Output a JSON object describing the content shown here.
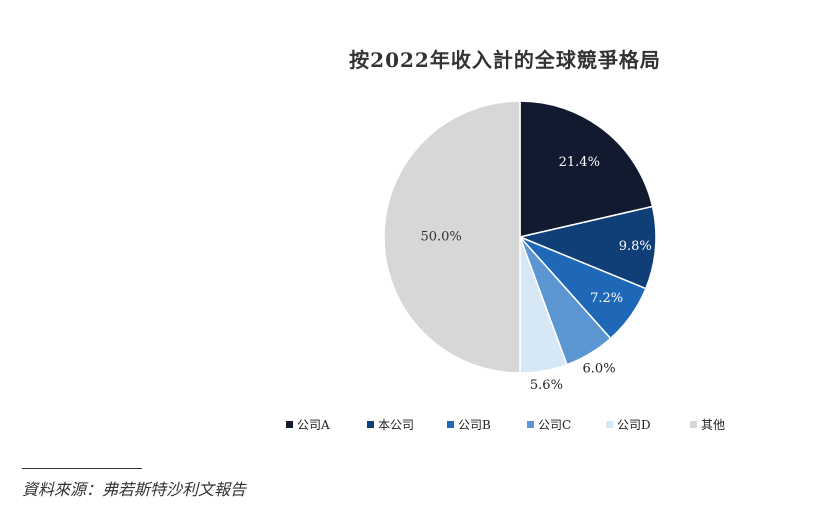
{
  "chart_data": {
    "type": "pie",
    "title": "按2022年收入計的全球競爭格局",
    "slices": [
      {
        "name": "公司A",
        "value": 21.4,
        "label": "21.4%",
        "color": "#111a2f"
      },
      {
        "name": "本公司",
        "value": 9.8,
        "label": "9.8%",
        "color": "#103f78"
      },
      {
        "name": "公司B",
        "value": 7.2,
        "label": "7.2%",
        "color": "#1f67b7"
      },
      {
        "name": "公司C",
        "value": 6.0,
        "label": "6.0%",
        "color": "#5b95d2"
      },
      {
        "name": "公司D",
        "value": 5.6,
        "label": "5.6%",
        "color": "#d6e8f6"
      },
      {
        "name": "其他",
        "value": 50.0,
        "label": "50.0%",
        "color": "#d7d7d7"
      }
    ],
    "legend_position": "bottom"
  },
  "source": {
    "text": "資料來源：弗若斯特沙利文報告"
  }
}
